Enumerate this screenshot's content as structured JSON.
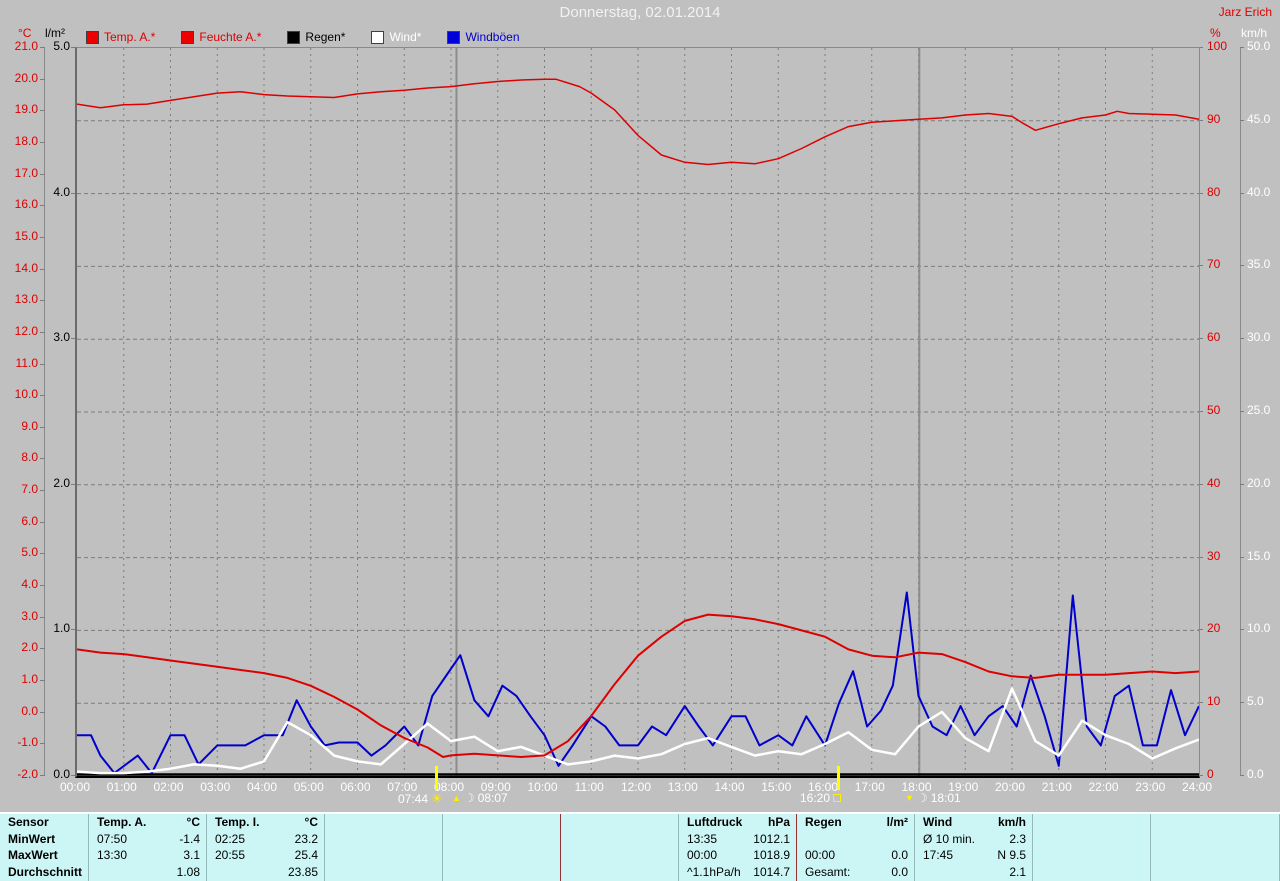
{
  "title": "Donnerstag, 02.01.2014",
  "station": "Jarz Erich",
  "colors": {
    "background": "#c0c0c0",
    "grid": "#7c7c7c",
    "temp": "#dd0000",
    "humidity": "#dd0000",
    "rain": "#000000",
    "wind": "#ffffff",
    "gusts": "#0000cc",
    "title_text": "#f2f2f2",
    "table_bg": "#ccf6f6",
    "marker_yellow": "#ffff00"
  },
  "legend": [
    {
      "label": "Temp. A.*",
      "color": "#dd0000",
      "swatch": "#ee0000"
    },
    {
      "label": "Feuchte A.*",
      "color": "#dd0000",
      "swatch": "#ee0000"
    },
    {
      "label": "Regen*",
      "color": "#000000",
      "swatch": "#000000"
    },
    {
      "label": "Wind*",
      "color": "#ffffff",
      "swatch": "#ffffff"
    },
    {
      "label": "Windböen",
      "color": "#0000cc",
      "swatch": "#0000dd"
    }
  ],
  "axes": {
    "temp_c": {
      "unit": "°C",
      "range": [
        -2,
        21
      ],
      "ticks": [
        "21.0",
        "20.0",
        "19.0",
        "18.0",
        "17.0",
        "16.0",
        "15.0",
        "14.0",
        "13.0",
        "12.0",
        "11.0",
        "10.0",
        "9.0",
        "8.0",
        "7.0",
        "6.0",
        "5.0",
        "4.0",
        "3.0",
        "2.0",
        "1.0",
        "0.0",
        "-1.0",
        "-2.0"
      ]
    },
    "rain_lm2": {
      "unit": "l/m²",
      "range": [
        0,
        5
      ],
      "ticks": [
        "5.0",
        "4.0",
        "3.0",
        "2.0",
        "1.0",
        "0.0"
      ]
    },
    "humidity_pct": {
      "unit": "%",
      "range": [
        0,
        100
      ],
      "ticks": [
        "100",
        "90",
        "80",
        "70",
        "60",
        "50",
        "40",
        "30",
        "20",
        "10",
        "0"
      ]
    },
    "wind_kmh": {
      "unit": "km/h",
      "range": [
        0,
        50
      ],
      "ticks": [
        "50.0",
        "45.0",
        "40.0",
        "35.0",
        "30.0",
        "25.0",
        "20.0",
        "15.0",
        "10.0",
        "5.0",
        "0.0"
      ]
    },
    "time": {
      "ticks": [
        "00:00",
        "01:00",
        "02:00",
        "03:00",
        "04:00",
        "05:00",
        "06:00",
        "07:00",
        "08:00",
        "09:00",
        "10:00",
        "11:00",
        "12:00",
        "13:00",
        "14:00",
        "15:00",
        "16:00",
        "17:00",
        "18:00",
        "19:00",
        "20:00",
        "21:00",
        "22:00",
        "23:00",
        "24:00"
      ]
    }
  },
  "markers": {
    "sunrise": {
      "time": "07:44",
      "glyph": "☀",
      "hour": 7.733
    },
    "moonrise": {
      "time": "08:07",
      "glyph": "☽",
      "arrow": "▲",
      "hour": 8.117
    },
    "sunset": {
      "time": "16:20",
      "glyph": "▫",
      "hour": 16.333
    },
    "moonset": {
      "time": "18:01",
      "glyph": "☽",
      "arrow": "▼",
      "hour": 18.017
    }
  },
  "chart_data": {
    "type": "line",
    "title": "Donnerstag, 02.01.2014",
    "x_unit": "hours",
    "x_range": [
      0,
      24
    ],
    "grid": true,
    "legend_position": "top",
    "series": [
      {
        "name": "Regen",
        "axis": "rain_lm2",
        "color": "#000000",
        "width": 2.5,
        "points": [
          [
            0,
            0
          ],
          [
            24,
            0
          ]
        ]
      },
      {
        "name": "Windböen",
        "axis": "wind_kmh",
        "color": "#0000cc",
        "width": 2,
        "points": [
          [
            0,
            2.8
          ],
          [
            0.3,
            2.8
          ],
          [
            0.5,
            1.4
          ],
          [
            0.8,
            0.2
          ],
          [
            1.3,
            1.4
          ],
          [
            1.6,
            0.2
          ],
          [
            2,
            2.8
          ],
          [
            2.3,
            2.8
          ],
          [
            2.6,
            0.8
          ],
          [
            3,
            2.1
          ],
          [
            3.3,
            2.1
          ],
          [
            3.6,
            2.1
          ],
          [
            4,
            2.8
          ],
          [
            4.4,
            2.8
          ],
          [
            4.7,
            5.2
          ],
          [
            5,
            3.4
          ],
          [
            5.3,
            2.1
          ],
          [
            5.6,
            2.3
          ],
          [
            6,
            2.3
          ],
          [
            6.3,
            1.4
          ],
          [
            6.6,
            2.1
          ],
          [
            7,
            3.4
          ],
          [
            7.3,
            2.1
          ],
          [
            7.6,
            5.5
          ],
          [
            7.9,
            6.9
          ],
          [
            8.2,
            8.3
          ],
          [
            8.5,
            5.2
          ],
          [
            8.8,
            4.1
          ],
          [
            9.1,
            6.2
          ],
          [
            9.4,
            5.5
          ],
          [
            9.7,
            4.1
          ],
          [
            10,
            2.8
          ],
          [
            10.3,
            0.7
          ],
          [
            10.6,
            2.1
          ],
          [
            11,
            4.1
          ],
          [
            11.3,
            3.4
          ],
          [
            11.6,
            2.1
          ],
          [
            12,
            2.1
          ],
          [
            12.3,
            3.4
          ],
          [
            12.6,
            2.8
          ],
          [
            13,
            4.8
          ],
          [
            13.3,
            3.4
          ],
          [
            13.6,
            2.1
          ],
          [
            14,
            4.1
          ],
          [
            14.3,
            4.1
          ],
          [
            14.6,
            2.1
          ],
          [
            15,
            2.8
          ],
          [
            15.3,
            2.1
          ],
          [
            15.6,
            4.1
          ],
          [
            16,
            2.1
          ],
          [
            16.3,
            5.0
          ],
          [
            16.6,
            7.2
          ],
          [
            16.9,
            3.4
          ],
          [
            17.2,
            4.5
          ],
          [
            17.45,
            6.2
          ],
          [
            17.75,
            12.6
          ],
          [
            18,
            5.5
          ],
          [
            18.3,
            3.4
          ],
          [
            18.6,
            2.8
          ],
          [
            18.9,
            4.8
          ],
          [
            19.2,
            2.8
          ],
          [
            19.5,
            4.1
          ],
          [
            19.8,
            4.8
          ],
          [
            20.1,
            3.4
          ],
          [
            20.4,
            6.9
          ],
          [
            20.7,
            4.1
          ],
          [
            21,
            0.7
          ],
          [
            21.3,
            12.4
          ],
          [
            21.6,
            3.4
          ],
          [
            21.9,
            2.1
          ],
          [
            22.2,
            5.5
          ],
          [
            22.5,
            6.2
          ],
          [
            22.8,
            2.1
          ],
          [
            23.1,
            2.1
          ],
          [
            23.4,
            5.9
          ],
          [
            23.7,
            2.8
          ],
          [
            24,
            4.8
          ]
        ]
      },
      {
        "name": "Wind",
        "axis": "wind_kmh",
        "color": "#ffffff",
        "width": 2.5,
        "points": [
          [
            0,
            0.3
          ],
          [
            0.5,
            0.2
          ],
          [
            1,
            0.2
          ],
          [
            1.5,
            0.3
          ],
          [
            2,
            0.5
          ],
          [
            2.5,
            0.8
          ],
          [
            3,
            0.7
          ],
          [
            3.5,
            0.5
          ],
          [
            4,
            1.0
          ],
          [
            4.5,
            3.7
          ],
          [
            5,
            2.8
          ],
          [
            5.5,
            1.4
          ],
          [
            6,
            1.0
          ],
          [
            6.5,
            0.8
          ],
          [
            7,
            2.2
          ],
          [
            7.5,
            3.6
          ],
          [
            8,
            2.4
          ],
          [
            8.5,
            2.7
          ],
          [
            9,
            1.7
          ],
          [
            9.5,
            2.0
          ],
          [
            10,
            1.4
          ],
          [
            10.5,
            0.8
          ],
          [
            11,
            1.0
          ],
          [
            11.5,
            1.4
          ],
          [
            12,
            1.2
          ],
          [
            12.5,
            1.5
          ],
          [
            13,
            2.2
          ],
          [
            13.5,
            2.6
          ],
          [
            14,
            2.0
          ],
          [
            14.5,
            1.4
          ],
          [
            15,
            1.7
          ],
          [
            15.5,
            1.5
          ],
          [
            16,
            2.2
          ],
          [
            16.5,
            3.0
          ],
          [
            17,
            1.8
          ],
          [
            17.5,
            1.5
          ],
          [
            18,
            3.4
          ],
          [
            18.5,
            4.4
          ],
          [
            19,
            2.6
          ],
          [
            19.5,
            1.7
          ],
          [
            20,
            6.0
          ],
          [
            20.5,
            2.4
          ],
          [
            21,
            1.4
          ],
          [
            21.5,
            3.8
          ],
          [
            22,
            2.8
          ],
          [
            22.5,
            2.2
          ],
          [
            23,
            1.2
          ],
          [
            23.5,
            1.9
          ],
          [
            24,
            2.5
          ]
        ]
      },
      {
        "name": "Temp. A.",
        "axis": "temp_c",
        "color": "#dd0000",
        "width": 2,
        "points": [
          [
            0,
            2.0
          ],
          [
            0.5,
            1.9
          ],
          [
            1,
            1.85
          ],
          [
            1.5,
            1.75
          ],
          [
            2,
            1.65
          ],
          [
            2.5,
            1.55
          ],
          [
            3,
            1.45
          ],
          [
            3.5,
            1.35
          ],
          [
            4,
            1.25
          ],
          [
            4.5,
            1.1
          ],
          [
            5,
            0.85
          ],
          [
            5.5,
            0.5
          ],
          [
            6,
            0.1
          ],
          [
            6.5,
            -0.4
          ],
          [
            7,
            -0.8
          ],
          [
            7.5,
            -1.1
          ],
          [
            7.83,
            -1.4
          ],
          [
            8,
            -1.35
          ],
          [
            8.5,
            -1.3
          ],
          [
            9,
            -1.35
          ],
          [
            9.5,
            -1.4
          ],
          [
            10,
            -1.35
          ],
          [
            10.5,
            -0.9
          ],
          [
            11,
            -0.1
          ],
          [
            11.5,
            0.9
          ],
          [
            12,
            1.8
          ],
          [
            12.5,
            2.4
          ],
          [
            13,
            2.9
          ],
          [
            13.5,
            3.1
          ],
          [
            14,
            3.05
          ],
          [
            14.5,
            2.95
          ],
          [
            15,
            2.8
          ],
          [
            15.5,
            2.6
          ],
          [
            16,
            2.4
          ],
          [
            16.5,
            2.0
          ],
          [
            17,
            1.8
          ],
          [
            17.5,
            1.75
          ],
          [
            18,
            1.9
          ],
          [
            18.5,
            1.85
          ],
          [
            19,
            1.6
          ],
          [
            19.5,
            1.3
          ],
          [
            20,
            1.15
          ],
          [
            20.5,
            1.1
          ],
          [
            21,
            1.2
          ],
          [
            21.5,
            1.2
          ],
          [
            22,
            1.2
          ],
          [
            22.5,
            1.25
          ],
          [
            23,
            1.3
          ],
          [
            23.5,
            1.25
          ],
          [
            24,
            1.3
          ]
        ]
      },
      {
        "name": "Feuchte A.",
        "axis": "humidity_pct",
        "color": "#dd0000",
        "width": 1.5,
        "points": [
          [
            0,
            92.3
          ],
          [
            0.5,
            91.8
          ],
          [
            1,
            92.2
          ],
          [
            1.5,
            92.3
          ],
          [
            2,
            92.8
          ],
          [
            2.5,
            93.3
          ],
          [
            3,
            93.8
          ],
          [
            3.5,
            94.0
          ],
          [
            4,
            93.6
          ],
          [
            4.5,
            93.4
          ],
          [
            5,
            93.3
          ],
          [
            5.5,
            93.2
          ],
          [
            6,
            93.7
          ],
          [
            6.5,
            94.0
          ],
          [
            7,
            94.2
          ],
          [
            7.5,
            94.5
          ],
          [
            8,
            94.7
          ],
          [
            8.5,
            95.1
          ],
          [
            9,
            95.4
          ],
          [
            9.5,
            95.6
          ],
          [
            10,
            95.7
          ],
          [
            10.25,
            95.7
          ],
          [
            10.75,
            94.7
          ],
          [
            11,
            93.8
          ],
          [
            11.5,
            91.5
          ],
          [
            12,
            88.0
          ],
          [
            12.5,
            85.3
          ],
          [
            13,
            84.3
          ],
          [
            13.5,
            84.0
          ],
          [
            14,
            84.3
          ],
          [
            14.5,
            84.1
          ],
          [
            15,
            84.8
          ],
          [
            15.5,
            86.2
          ],
          [
            16,
            87.8
          ],
          [
            16.5,
            89.2
          ],
          [
            17,
            89.8
          ],
          [
            17.5,
            90.0
          ],
          [
            18,
            90.2
          ],
          [
            18.5,
            90.4
          ],
          [
            19,
            90.8
          ],
          [
            19.5,
            91.0
          ],
          [
            20,
            90.6
          ],
          [
            20.25,
            89.6
          ],
          [
            20.5,
            88.7
          ],
          [
            21,
            89.6
          ],
          [
            21.5,
            90.4
          ],
          [
            22,
            90.8
          ],
          [
            22.25,
            91.3
          ],
          [
            22.5,
            91.0
          ],
          [
            23,
            90.9
          ],
          [
            23.5,
            90.8
          ],
          [
            24,
            90.2
          ]
        ]
      }
    ]
  },
  "table": {
    "row_headers": [
      "Sensor",
      "MinWert",
      "MaxWert",
      "Durchschnitt"
    ],
    "columns": [
      {
        "name": "Temp. A.",
        "unit": "°C",
        "min": [
          "07:50",
          "-1.4"
        ],
        "max": [
          "13:30",
          "3.1"
        ],
        "avg": [
          "",
          "1.08"
        ]
      },
      {
        "name": "Temp. I.",
        "unit": "°C",
        "min": [
          "02:25",
          "23.2"
        ],
        "max": [
          "20:55",
          "25.4"
        ],
        "avg": [
          "",
          "23.85"
        ]
      },
      {
        "name": "",
        "unit": "",
        "min": [
          "",
          ""
        ],
        "max": [
          "",
          ""
        ],
        "avg": [
          "",
          ""
        ]
      },
      {
        "name": "",
        "unit": "",
        "min": [
          "",
          ""
        ],
        "max": [
          "",
          ""
        ],
        "avg": [
          "",
          ""
        ]
      },
      {
        "name": "",
        "unit": "",
        "min": [
          "",
          ""
        ],
        "max": [
          "",
          ""
        ],
        "avg": [
          "",
          ""
        ]
      },
      {
        "name": "Luftdruck",
        "unit": "hPa",
        "min": [
          "13:35",
          "1012.1"
        ],
        "max": [
          "00:00",
          "1018.9"
        ],
        "avg": [
          "^1.1hPa/h",
          "1014.7"
        ]
      },
      {
        "name": "Regen",
        "unit": "l/m²",
        "min": [
          "",
          ""
        ],
        "max": [
          "00:00",
          "0.0"
        ],
        "avg": [
          "Gesamt:",
          "0.0"
        ]
      },
      {
        "name": "Wind",
        "unit": "km/h",
        "min": [
          "Ø 10 min.",
          "2.3"
        ],
        "max": [
          "17:45",
          "N 9.5"
        ],
        "avg": [
          "",
          "2.1"
        ]
      },
      {
        "name": "",
        "unit": "",
        "min": [
          "",
          ""
        ],
        "max": [
          "",
          ""
        ],
        "avg": [
          "",
          ""
        ]
      },
      {
        "name": "",
        "unit": "",
        "min": [
          "",
          ""
        ],
        "max": [
          "",
          ""
        ],
        "avg": [
          "",
          ""
        ]
      }
    ]
  }
}
